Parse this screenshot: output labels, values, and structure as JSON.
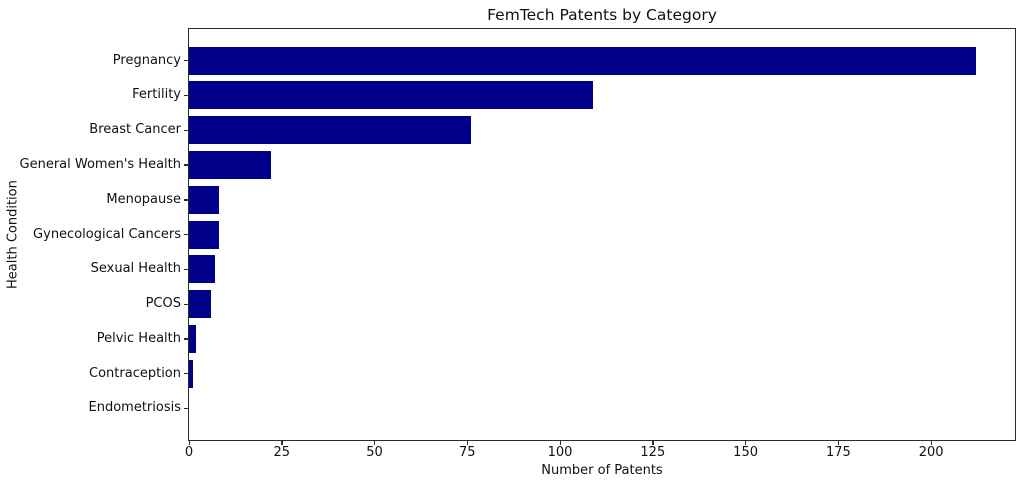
{
  "chart_data": {
    "type": "bar",
    "orientation": "horizontal",
    "title": "FemTech Patents by Category",
    "xlabel": "Number of Patents",
    "ylabel": "Health Condition",
    "categories": [
      "Pregnancy",
      "Fertility",
      "Breast Cancer",
      "General Women's Health",
      "Menopause",
      "Gynecological Cancers",
      "Sexual Health",
      "PCOS",
      "Pelvic Health",
      "Contraception",
      "Endometriosis"
    ],
    "values": [
      212,
      109,
      76,
      22,
      8,
      8,
      7,
      6,
      2,
      1,
      0
    ],
    "xticks": [
      0,
      25,
      50,
      75,
      100,
      125,
      150,
      175,
      200
    ],
    "xlim": [
      0,
      222.6
    ],
    "bar_color": "#00008B",
    "grid": false,
    "legend": null
  }
}
